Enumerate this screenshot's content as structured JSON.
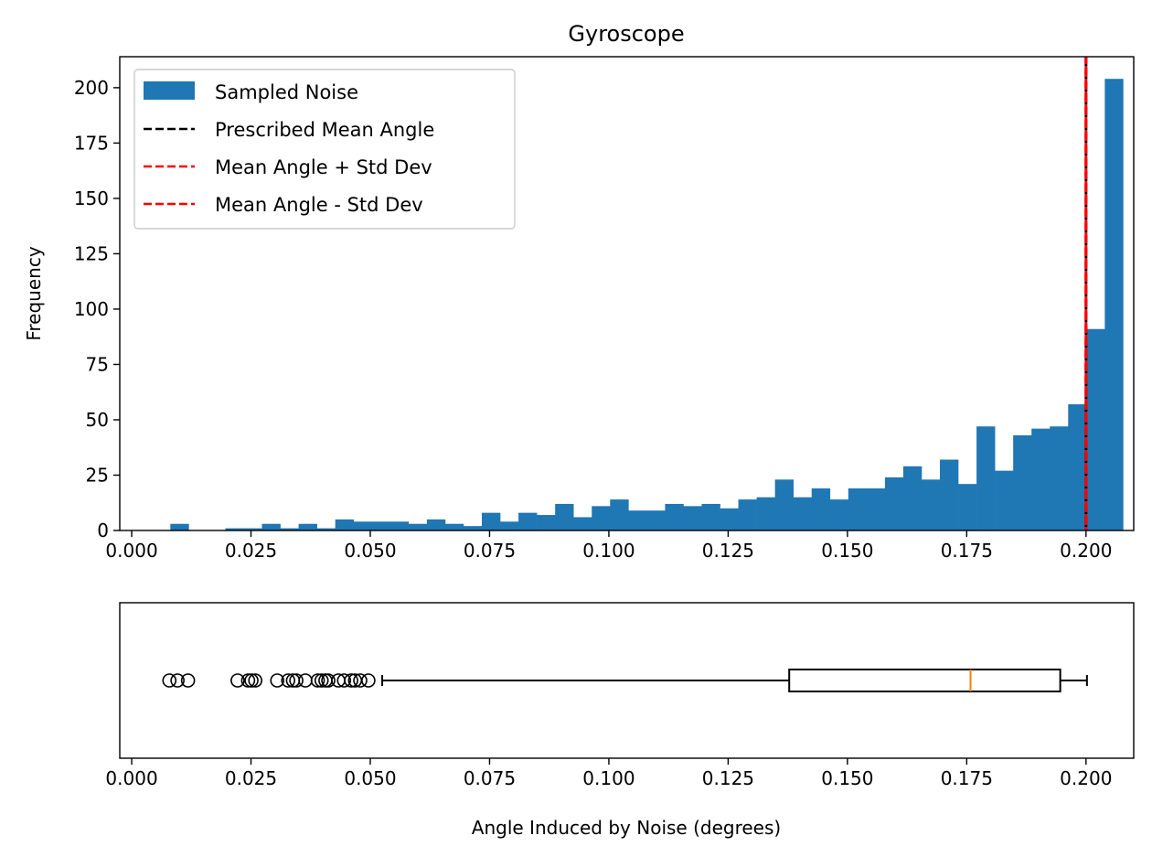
{
  "chart_data": [
    {
      "type": "bar",
      "subtype": "histogram",
      "title": "Gyroscope",
      "xlabel": "",
      "ylabel": "Frequency",
      "xlim": [
        -0.0025,
        0.21
      ],
      "ylim": [
        0,
        214
      ],
      "xticks": [
        "0.000",
        "0.025",
        "0.050",
        "0.075",
        "0.100",
        "0.125",
        "0.150",
        "0.175",
        "0.200"
      ],
      "xtick_values": [
        0,
        0.025,
        0.05,
        0.075,
        0.1,
        0.125,
        0.15,
        0.175,
        0.2
      ],
      "yticks": [
        "0",
        "25",
        "50",
        "75",
        "100",
        "125",
        "150",
        "175",
        "200"
      ],
      "ytick_values": [
        0,
        25,
        50,
        75,
        100,
        125,
        150,
        175,
        200
      ],
      "grid": false,
      "legend_position": "top-left",
      "bar_color": "#1f77b4",
      "bins_start": 0.0081,
      "bin_width": 0.00384,
      "counts": [
        3,
        0,
        0,
        1,
        1,
        3,
        1,
        3,
        1,
        5,
        4,
        4,
        4,
        3,
        5,
        3,
        2,
        8,
        4,
        8,
        7,
        12,
        6,
        11,
        14,
        9,
        9,
        12,
        11,
        12,
        10,
        14,
        15,
        23,
        15,
        19,
        14,
        19,
        19,
        24,
        29,
        23,
        32,
        21,
        47,
        27,
        43,
        46,
        47,
        57,
        91,
        204
      ],
      "series": [
        {
          "name": "Sampled Noise",
          "kind": "bar",
          "color": "#1f77b4"
        },
        {
          "name": "Prescribed Mean Angle",
          "kind": "dashed-line",
          "color": "#000000",
          "x": 0.2
        },
        {
          "name": "Mean Angle + Std Dev",
          "kind": "dashed-line",
          "color": "#ff0000",
          "x": 0.2
        },
        {
          "name": "Mean Angle - Std Dev",
          "kind": "dashed-line",
          "color": "#ff0000",
          "x": 0.2
        }
      ]
    },
    {
      "type": "boxplot",
      "orientation": "horizontal",
      "xlabel": "Angle Induced by Noise (degrees)",
      "ylabel": "",
      "xlim": [
        -0.0025,
        0.21
      ],
      "xticks": [
        "0.000",
        "0.025",
        "0.050",
        "0.075",
        "0.100",
        "0.125",
        "0.150",
        "0.175",
        "0.200"
      ],
      "xtick_values": [
        0,
        0.025,
        0.05,
        0.075,
        0.1,
        0.125,
        0.15,
        0.175,
        0.2
      ],
      "whisker_low": 0.0525,
      "q1": 0.1378,
      "median": 0.1758,
      "q3": 0.1946,
      "whisker_high": 0.2002,
      "median_color": "#ff7f0e",
      "outliers": [
        0.0079,
        0.0096,
        0.0118,
        0.0222,
        0.0244,
        0.0251,
        0.0259,
        0.0305,
        0.0328,
        0.0338,
        0.0345,
        0.0364,
        0.039,
        0.0398,
        0.0406,
        0.0412,
        0.0433,
        0.0445,
        0.046,
        0.0468,
        0.0479,
        0.0496
      ]
    }
  ]
}
